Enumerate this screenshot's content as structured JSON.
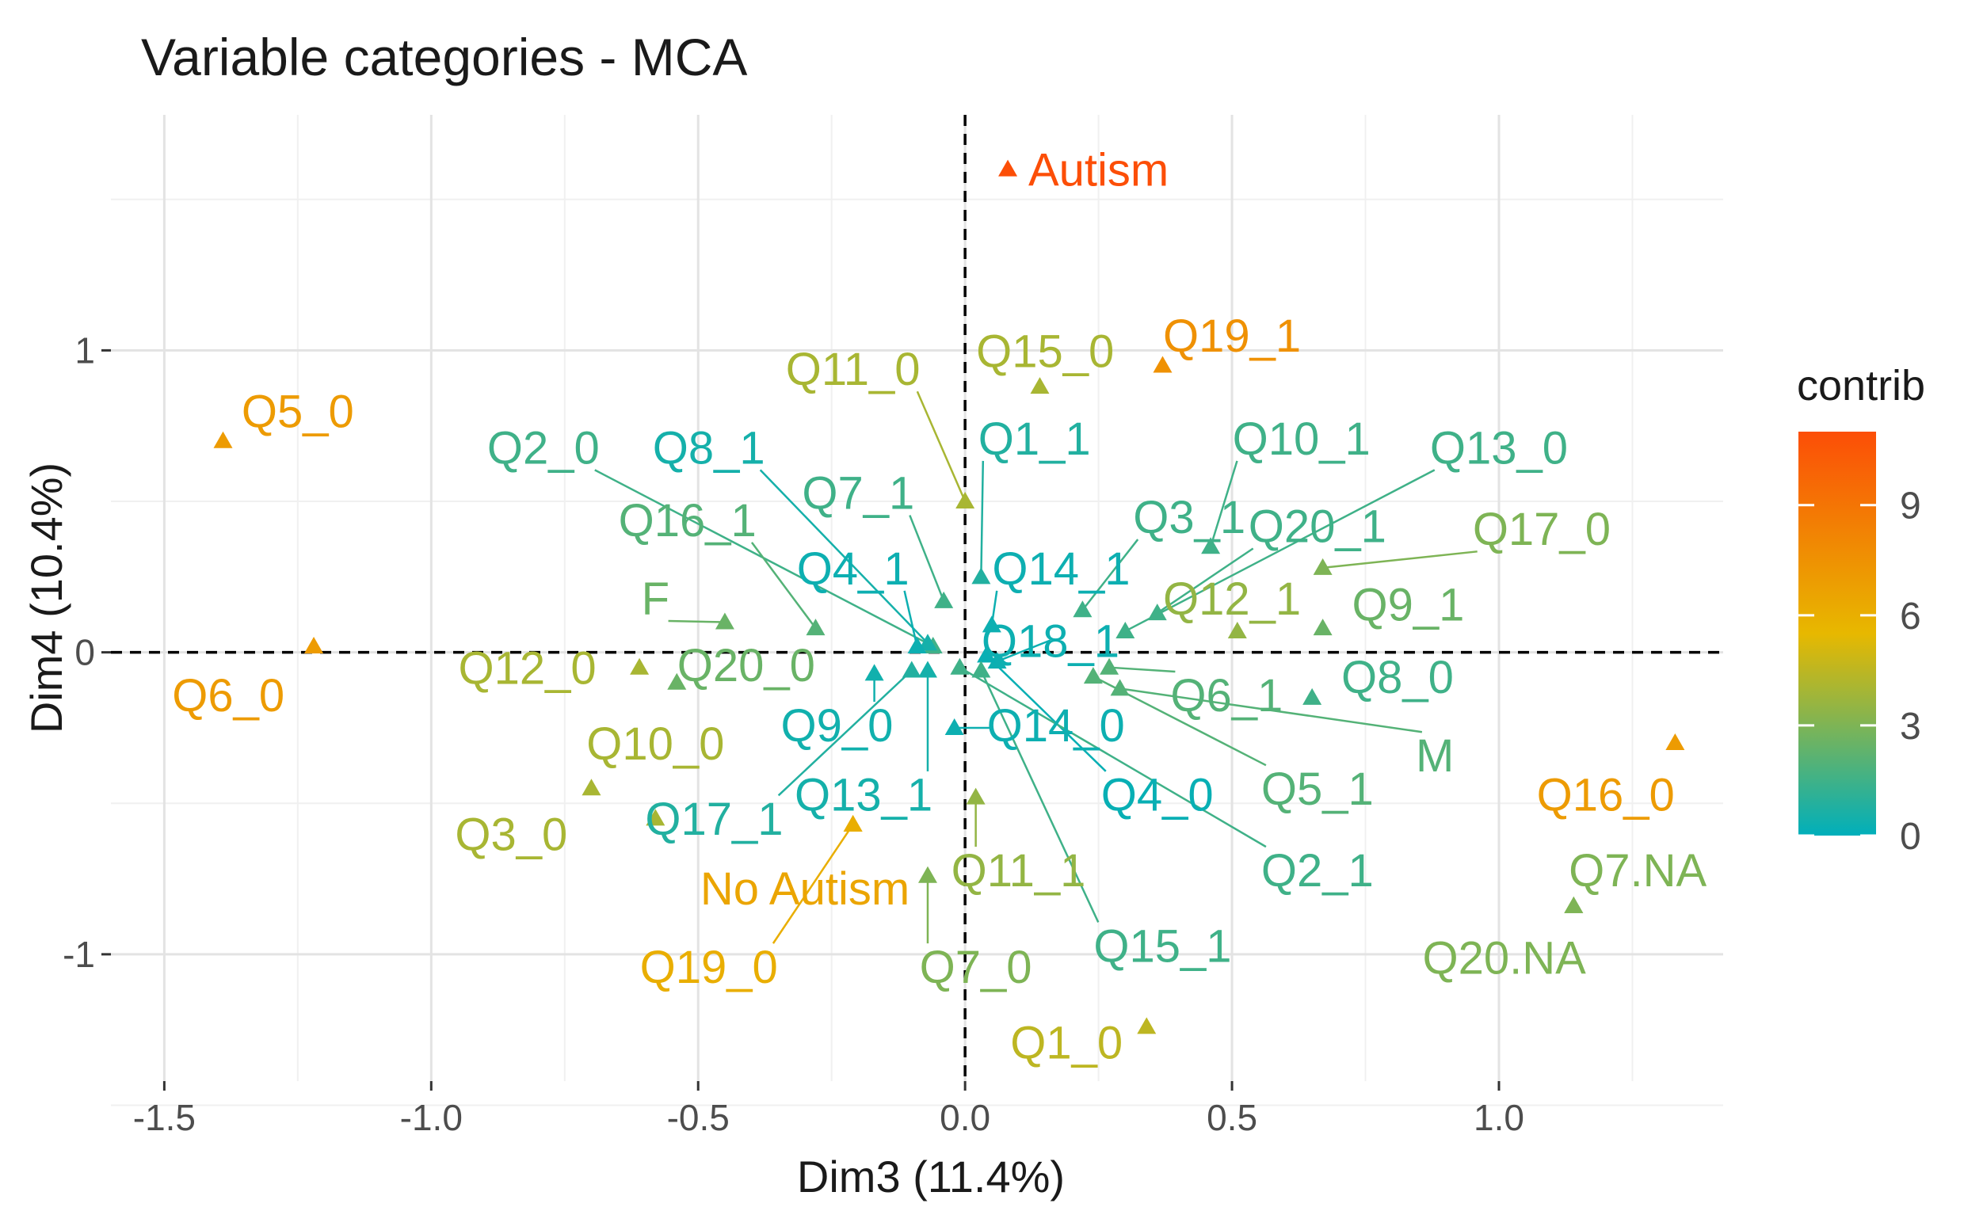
{
  "chart_data": {
    "type": "scatter",
    "title": "Variable categories - MCA",
    "xlabel": "Dim3 (11.4%)",
    "ylabel": "Dim4 (10.4%)",
    "xlim": [
      -1.6,
      1.42
    ],
    "ylim": [
      -1.42,
      1.78
    ],
    "x_ticks": [
      -1.5,
      -1.0,
      -0.5,
      0.0,
      0.5,
      1.0
    ],
    "x_tick_labels": [
      "-1.5",
      "-1.0",
      "-0.5",
      "0.0",
      "0.5",
      "1.0"
    ],
    "y_ticks": [
      -1,
      0,
      1
    ],
    "y_tick_labels": [
      "-1",
      "0",
      "1"
    ],
    "grid": true,
    "legend": {
      "title": "contrib",
      "position": "right",
      "range": [
        0,
        11
      ],
      "ticks": [
        0,
        3,
        6,
        9
      ],
      "tick_labels": [
        "0",
        "3",
        "6",
        "9"
      ],
      "gradient": [
        "#00AFBB",
        "#E7B800",
        "#FC4E07"
      ]
    },
    "points": [
      {
        "label": "Autism",
        "x": 0.08,
        "y": 1.6,
        "contrib": 11,
        "lx": 0.25,
        "ly": 1.6
      },
      {
        "label": "Q19_1",
        "x": 0.37,
        "y": 0.95,
        "contrib": 7.5,
        "lx": 0.5,
        "ly": 1.05
      },
      {
        "label": "Q15_0",
        "x": 0.14,
        "y": 0.88,
        "contrib": 4,
        "lx": 0.15,
        "ly": 1.0
      },
      {
        "label": "Q11_0",
        "x": 0.0,
        "y": 0.5,
        "contrib": 4,
        "lx": -0.21,
        "ly": 0.94,
        "leader": true
      },
      {
        "label": "Q5_0",
        "x": -1.39,
        "y": 0.7,
        "contrib": 7,
        "lx": -1.25,
        "ly": 0.8
      },
      {
        "label": "Q6_0",
        "x": -1.22,
        "y": 0.02,
        "contrib": 7,
        "lx": -1.38,
        "ly": -0.14
      },
      {
        "label": "Q2_0",
        "x": -0.06,
        "y": 0.02,
        "contrib": 1.5,
        "lx": -0.79,
        "ly": 0.68,
        "leader": true
      },
      {
        "label": "Q8_1",
        "x": -0.07,
        "y": 0.03,
        "contrib": 0.5,
        "lx": -0.48,
        "ly": 0.68,
        "leader": true
      },
      {
        "label": "Q1_1",
        "x": 0.03,
        "y": 0.25,
        "contrib": 0.8,
        "lx": 0.13,
        "ly": 0.71,
        "leader": true
      },
      {
        "label": "Q10_1",
        "x": 0.46,
        "y": 0.35,
        "contrib": 1.5,
        "lx": 0.63,
        "ly": 0.71,
        "leader": true
      },
      {
        "label": "Q13_0",
        "x": 0.3,
        "y": 0.07,
        "contrib": 1.5,
        "lx": 1.0,
        "ly": 0.68,
        "leader": true
      },
      {
        "label": "Q7_1",
        "x": -0.04,
        "y": 0.17,
        "contrib": 1.5,
        "lx": -0.2,
        "ly": 0.53,
        "leader": true
      },
      {
        "label": "Q16_1",
        "x": -0.28,
        "y": 0.08,
        "contrib": 2,
        "lx": -0.52,
        "ly": 0.44,
        "leader": true
      },
      {
        "label": "Q3_1",
        "x": 0.22,
        "y": 0.14,
        "contrib": 1.5,
        "lx": 0.42,
        "ly": 0.45,
        "leader": true
      },
      {
        "label": "Q20_1",
        "x": 0.36,
        "y": 0.13,
        "contrib": 1.5,
        "lx": 0.66,
        "ly": 0.42,
        "leader": true
      },
      {
        "label": "Q17_0",
        "x": 0.67,
        "y": 0.28,
        "contrib": 3,
        "lx": 1.08,
        "ly": 0.41,
        "leader": true
      },
      {
        "label": "Q4_1",
        "x": -0.09,
        "y": 0.02,
        "contrib": 0.3,
        "lx": -0.21,
        "ly": 0.28,
        "leader": true
      },
      {
        "label": "Q14_1",
        "x": 0.05,
        "y": 0.09,
        "contrib": 0.3,
        "lx": 0.18,
        "ly": 0.28,
        "leader": true
      },
      {
        "label": "F",
        "x": -0.45,
        "y": 0.1,
        "contrib": 2.5,
        "lx": -0.58,
        "ly": 0.18,
        "leader": true
      },
      {
        "label": "Q12_1",
        "x": 0.51,
        "y": 0.07,
        "contrib": 3.5,
        "lx": 0.5,
        "ly": 0.18
      },
      {
        "label": "Q9_1",
        "x": 0.67,
        "y": 0.08,
        "contrib": 2.5,
        "lx": 0.83,
        "ly": 0.16
      },
      {
        "label": "Q18_1",
        "x": 0.06,
        "y": -0.03,
        "contrib": 0.3,
        "lx": 0.16,
        "ly": 0.04,
        "leader": true
      },
      {
        "label": "Q12_0",
        "x": -0.61,
        "y": -0.05,
        "contrib": 4,
        "lx": -0.82,
        "ly": -0.05
      },
      {
        "label": "Q20_0",
        "x": -0.54,
        "y": -0.1,
        "contrib": 2.5,
        "lx": -0.41,
        "ly": -0.04
      },
      {
        "label": "Q6_1",
        "x": 0.27,
        "y": -0.05,
        "contrib": 2,
        "lx": 0.49,
        "ly": -0.14,
        "leader": true
      },
      {
        "label": "Q8_0",
        "x": 0.65,
        "y": -0.15,
        "contrib": 1.5,
        "lx": 0.81,
        "ly": -0.08
      },
      {
        "label": "Q9_0",
        "x": -0.17,
        "y": -0.07,
        "contrib": 0.4,
        "lx": -0.24,
        "ly": -0.24,
        "leader": true
      },
      {
        "label": "Q14_0",
        "x": -0.02,
        "y": -0.25,
        "contrib": 0.3,
        "lx": 0.17,
        "ly": -0.24,
        "leader": true
      },
      {
        "label": "M",
        "x": 0.29,
        "y": -0.12,
        "contrib": 2,
        "lx": 0.88,
        "ly": -0.34,
        "leader": true
      },
      {
        "label": "Q10_0",
        "x": -0.7,
        "y": -0.45,
        "contrib": 4,
        "lx": -0.58,
        "ly": -0.3
      },
      {
        "label": "Q4_0",
        "x": 0.04,
        "y": -0.01,
        "contrib": 0.2,
        "lx": 0.36,
        "ly": -0.47,
        "leader": true
      },
      {
        "label": "Q5_1",
        "x": 0.24,
        "y": -0.08,
        "contrib": 2,
        "lx": 0.66,
        "ly": -0.45,
        "leader": true
      },
      {
        "label": "Q13_1",
        "x": -0.07,
        "y": -0.06,
        "contrib": 0.5,
        "lx": -0.19,
        "ly": -0.47,
        "leader": true
      },
      {
        "label": "Q17_1",
        "x": -0.1,
        "y": -0.06,
        "contrib": 0.8,
        "lx": -0.47,
        "ly": -0.55,
        "leader": true
      },
      {
        "label": "Q16_0",
        "x": 1.33,
        "y": -0.3,
        "contrib": 7,
        "lx": 1.2,
        "ly": -0.47
      },
      {
        "label": "Q3_0",
        "x": -0.58,
        "y": -0.55,
        "contrib": 4,
        "lx": -0.85,
        "ly": -0.6
      },
      {
        "label": "No Autism",
        "x": -0.21,
        "y": -0.57,
        "contrib": 6.5,
        "lx": -0.3,
        "ly": -0.78
      },
      {
        "label": "Q11_1",
        "x": 0.02,
        "y": -0.48,
        "contrib": 3.5,
        "lx": 0.1,
        "ly": -0.72,
        "leader": true
      },
      {
        "label": "Q2_1",
        "x": -0.01,
        "y": -0.05,
        "contrib": 1.5,
        "lx": 0.66,
        "ly": -0.72,
        "leader": true
      },
      {
        "label": "Q7.NA",
        "x": 1.14,
        "y": -0.84,
        "contrib": 3,
        "lx": 1.26,
        "ly": -0.72
      },
      {
        "label": "Q15_1",
        "x": 0.03,
        "y": -0.06,
        "contrib": 1.5,
        "lx": 0.37,
        "ly": -0.97,
        "leader": true
      },
      {
        "label": "Q20.NA",
        "x": 1.14,
        "y": -0.84,
        "contrib": 3,
        "lx": 1.01,
        "ly": -1.01
      },
      {
        "label": "Q19_0",
        "x": -0.21,
        "y": -0.57,
        "contrib": 6,
        "lx": -0.48,
        "ly": -1.04,
        "leader": true
      },
      {
        "label": "Q7_0",
        "x": -0.07,
        "y": -0.74,
        "contrib": 3,
        "lx": 0.02,
        "ly": -1.04,
        "leader": true
      },
      {
        "label": "Q1_0",
        "x": 0.34,
        "y": -1.24,
        "contrib": 4.5,
        "lx": 0.19,
        "ly": -1.29
      }
    ]
  }
}
